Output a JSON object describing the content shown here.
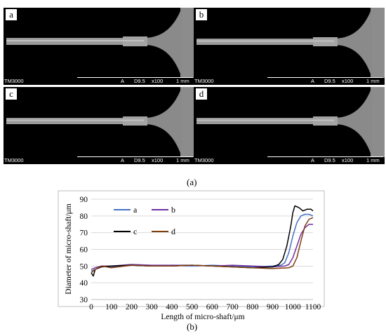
{
  "panels": [
    {
      "letter": "a",
      "instrument": "TM3000",
      "mode": "A",
      "distance": "D9.5",
      "magnification": "x100",
      "scale": "1 mm"
    },
    {
      "letter": "b",
      "instrument": "TM3000",
      "mode": "A",
      "distance": "D9.5",
      "magnification": "x100",
      "scale": "1 mm"
    },
    {
      "letter": "c",
      "instrument": "TM3000",
      "mode": "A",
      "distance": "D9.5",
      "magnification": "x100",
      "scale": "1 mm"
    },
    {
      "letter": "d",
      "instrument": "TM3000",
      "mode": "A",
      "distance": "D9.5",
      "magnification": "x100",
      "scale": "1 mm"
    }
  ],
  "captions": {
    "top": "(a)",
    "bottom": "(b)"
  },
  "chart_data": {
    "type": "line",
    "xlabel": "Length of micro-shaft/μm",
    "ylabel": "Diameter of micro-shaft/μm",
    "xlim": [
      0,
      1100
    ],
    "ylim": [
      30,
      90
    ],
    "xticks": [
      0,
      100,
      200,
      300,
      400,
      500,
      600,
      700,
      800,
      900,
      1000,
      1100
    ],
    "yticks": [
      30,
      40,
      50,
      60,
      70,
      80,
      90
    ],
    "grid": "horizontal",
    "legend": "upper-left, inside plot",
    "series": [
      {
        "name": "a",
        "color": "#4472c4",
        "x": [
          0,
          20,
          50,
          100,
          200,
          300,
          400,
          500,
          600,
          700,
          800,
          900,
          940,
          960,
          980,
          1000,
          1020,
          1040,
          1060,
          1080,
          1100
        ],
        "y": [
          47,
          48,
          50,
          49.5,
          50.5,
          50,
          50.5,
          50,
          50.5,
          50,
          49.5,
          50,
          50.5,
          52,
          58,
          68,
          76,
          80,
          81,
          81,
          80
        ]
      },
      {
        "name": "b",
        "color": "#7030a0",
        "x": [
          0,
          20,
          50,
          100,
          200,
          300,
          400,
          500,
          600,
          700,
          800,
          900,
          960,
          980,
          1000,
          1020,
          1040,
          1060,
          1080,
          1100
        ],
        "y": [
          48,
          49,
          50,
          50,
          51,
          50.5,
          50.5,
          50.5,
          50,
          50.5,
          50,
          49.5,
          50,
          51,
          55,
          62,
          69,
          73,
          75,
          75
        ]
      },
      {
        "name": "c",
        "color": "#000000",
        "x": [
          0,
          10,
          20,
          50,
          100,
          200,
          300,
          400,
          500,
          600,
          700,
          800,
          900,
          930,
          950,
          970,
          990,
          1000,
          1010,
          1030,
          1050,
          1070,
          1090,
          1100
        ],
        "y": [
          46,
          44,
          48,
          49.5,
          50,
          50.5,
          50,
          50,
          50.5,
          50,
          49.5,
          49,
          49.5,
          51,
          54,
          62,
          74,
          82,
          86,
          85,
          83,
          84,
          84,
          83
        ]
      },
      {
        "name": "d",
        "color": "#7f3f0f",
        "x": [
          0,
          20,
          50,
          100,
          200,
          300,
          400,
          500,
          600,
          700,
          800,
          900,
          980,
          1000,
          1020,
          1040,
          1060,
          1080,
          1100
        ],
        "y": [
          46,
          48,
          50,
          49,
          50.5,
          50,
          50,
          50.5,
          50,
          49.5,
          49,
          48.5,
          49,
          50,
          55,
          65,
          74,
          78,
          79
        ]
      }
    ]
  }
}
